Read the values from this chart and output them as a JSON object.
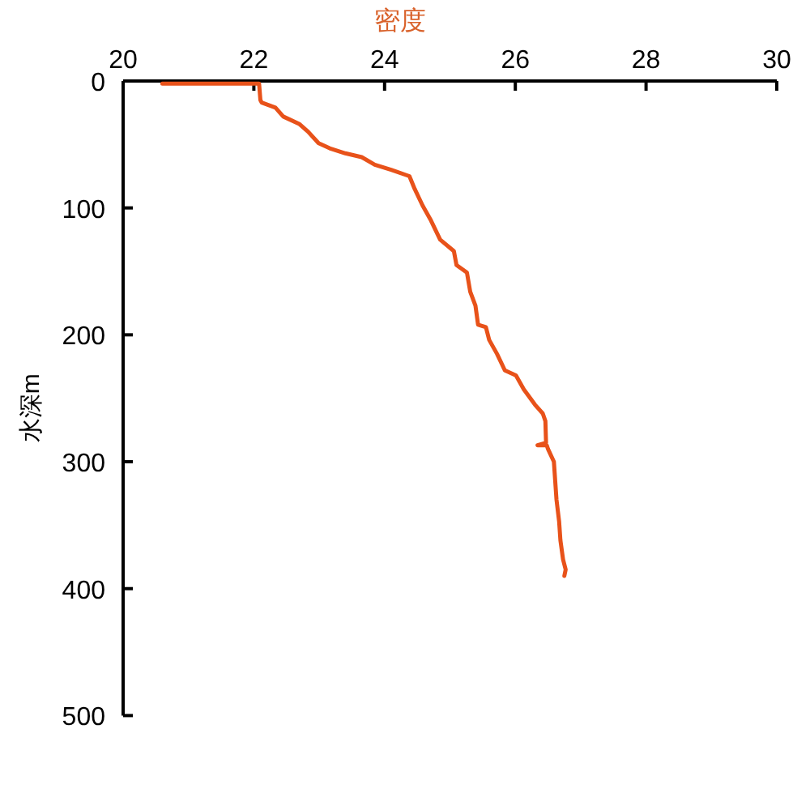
{
  "chart_data": {
    "type": "line",
    "xlabel": "密度",
    "ylabel": "水深m",
    "xlim": [
      20,
      30
    ],
    "xticks": [
      20,
      22,
      24,
      26,
      28,
      30
    ],
    "ylim": [
      500,
      0
    ],
    "yticks": [
      0,
      100,
      200,
      300,
      400,
      500
    ],
    "series": [
      {
        "color": "#e8521a",
        "x": [
          20.6,
          22.08,
          22.1,
          22.12,
          22.33,
          22.45,
          22.7,
          22.83,
          22.99,
          23.16,
          23.4,
          23.65,
          23.85,
          24.1,
          24.38,
          24.46,
          24.58,
          24.71,
          24.85,
          25.06,
          25.1,
          25.26,
          25.31,
          25.39,
          25.43,
          25.55,
          25.6,
          25.72,
          25.84,
          26.01,
          26.13,
          26.3,
          26.42,
          26.46,
          26.47,
          26.34,
          26.48,
          26.5,
          26.59,
          26.61,
          26.63,
          26.67,
          26.69,
          26.73,
          26.77,
          26.75
        ],
        "values": [
          2,
          2,
          15,
          17,
          21,
          28,
          34,
          40,
          49,
          53,
          57,
          60,
          66,
          70,
          75,
          85,
          98,
          110,
          125,
          134,
          145,
          151,
          166,
          177,
          192,
          194,
          204,
          215,
          228,
          232,
          243,
          255,
          262,
          268,
          285,
          287,
          287,
          290,
          300,
          315,
          330,
          347,
          362,
          377,
          385,
          390
        ]
      }
    ]
  }
}
